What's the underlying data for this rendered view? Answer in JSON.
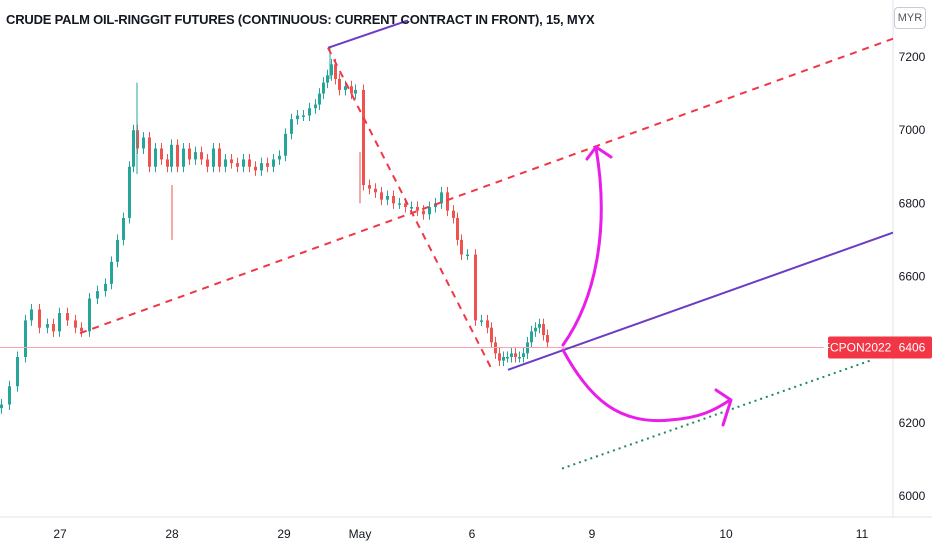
{
  "header": {
    "title": "CRUDE PALM OIL-RINGGIT FUTURES (CONTINUOUS: CURRENT CONTRACT IN FRONT), 15, MYX",
    "currency_button": "MYR"
  },
  "price_label": {
    "symbol": "FCPON2022",
    "price": "6406",
    "color": "#f23645"
  },
  "colors": {
    "up": "#26a69a",
    "down": "#ef5350",
    "purple": "#6a3dc4",
    "magenta": "#e91ee9",
    "dashed_red": "#f23645",
    "dotted_green": "#1e8a5a"
  },
  "chart_data": {
    "type": "candlestick",
    "title": "CRUDE PALM OIL-RINGGIT FUTURES (CONTINUOUS: CURRENT CONTRACT IN FRONT), 15, MYX",
    "currency": "MYR",
    "y_ticks": [
      6000,
      6200,
      6400,
      6600,
      6800,
      7000,
      7200
    ],
    "ylim": [
      5940,
      7300
    ],
    "x_tick_labels": [
      "27",
      "28",
      "29",
      "May",
      "6",
      "9",
      "10",
      "11"
    ],
    "last_price": 6406,
    "trend_lines": [
      {
        "name": "purple-upper",
        "style": "solid",
        "from": {
          "x": "29",
          "y": 7225
        },
        "to": {
          "x": "May",
          "y": 7300
        }
      },
      {
        "name": "purple-lower",
        "style": "solid",
        "from": {
          "x": "6",
          "y": 6345
        },
        "to": {
          "x": "11",
          "y": 6720
        }
      },
      {
        "name": "red-channel",
        "style": "dashed",
        "from": {
          "x": "27",
          "y": 6445
        },
        "to": {
          "x": "11",
          "y": 7250
        }
      },
      {
        "name": "red-decline",
        "style": "dashed",
        "from": {
          "x": "29",
          "y": 7225
        },
        "to": {
          "x": "6",
          "y": 6345
        }
      },
      {
        "name": "green-projection",
        "style": "dotted",
        "from": {
          "x": "9",
          "y": 6075
        },
        "to": {
          "x": "11",
          "y": 6370
        }
      }
    ],
    "arrows": [
      {
        "name": "up-scenario",
        "from_y": 6400,
        "to_y": 6960
      },
      {
        "name": "down-scenario",
        "from_y": 6400,
        "to_y": 6255
      }
    ],
    "grid": false
  }
}
